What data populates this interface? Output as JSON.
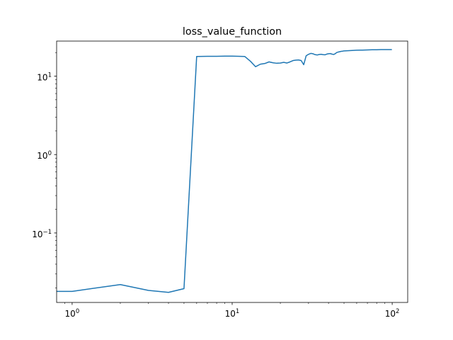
{
  "chart_data": {
    "type": "line",
    "title": "loss_value_function",
    "xlabel": "",
    "ylabel": "",
    "x_scale": "log",
    "y_scale": "log",
    "xlim": [
      0.8,
      125
    ],
    "ylim": [
      0.013,
      28
    ],
    "grid": false,
    "color": "#1f77b4",
    "x_ticks": [
      {
        "value": 1,
        "base": "10",
        "exp": "0"
      },
      {
        "value": 10,
        "base": "10",
        "exp": "1"
      },
      {
        "value": 100,
        "base": "10",
        "exp": "2"
      }
    ],
    "y_ticks": [
      {
        "value": 0.1,
        "base": "10",
        "exp": "−1"
      },
      {
        "value": 1,
        "base": "10",
        "exp": "0"
      },
      {
        "value": 10,
        "base": "10",
        "exp": "1"
      }
    ],
    "series": [
      {
        "x": [
          0,
          1,
          2,
          3,
          4,
          5,
          6,
          7,
          8,
          9,
          10,
          11,
          12,
          13,
          14,
          15,
          16,
          17,
          18,
          19,
          20,
          21,
          22,
          23,
          24,
          25,
          26,
          27,
          28,
          29,
          30,
          31,
          32,
          33,
          34,
          35,
          36,
          37,
          38,
          39,
          40,
          41,
          42,
          43,
          44,
          45,
          46,
          47,
          48,
          49,
          50,
          55,
          60,
          65,
          70,
          75,
          80,
          85,
          90,
          95,
          99
        ],
        "y": [
          0.018,
          0.018,
          0.022,
          0.0185,
          0.0175,
          0.0195,
          17.8,
          17.9,
          17.9,
          18.0,
          18.0,
          17.9,
          17.8,
          15.5,
          13.2,
          14.2,
          14.5,
          15.2,
          14.8,
          14.6,
          14.7,
          15.0,
          14.7,
          15.2,
          15.8,
          16.0,
          16.1,
          15.8,
          14.0,
          18.2,
          19.0,
          19.5,
          19.3,
          18.8,
          18.6,
          18.9,
          19.0,
          18.8,
          18.7,
          19.1,
          19.3,
          19.4,
          19.1,
          18.9,
          19.3,
          20.0,
          20.3,
          20.5,
          20.7,
          20.8,
          21.0,
          21.2,
          21.4,
          21.5,
          21.6,
          21.7,
          21.7,
          21.8,
          21.8,
          21.8,
          21.8
        ]
      }
    ]
  }
}
